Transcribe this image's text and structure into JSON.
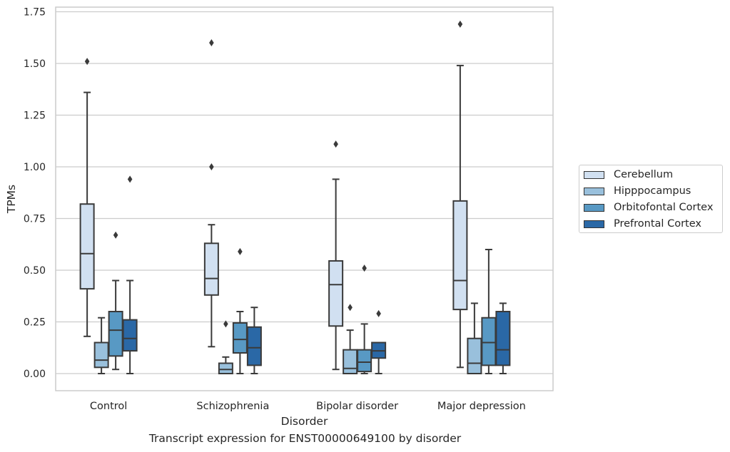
{
  "chart_data": {
    "type": "box",
    "xlabel": "Disorder",
    "ylabel": "TPMs",
    "caption": "Transcript expression for ENST00000649100 by disorder",
    "ylim": [
      -0.08,
      1.77
    ],
    "yticks": [
      0.0,
      0.25,
      0.5,
      0.75,
      1.0,
      1.25,
      1.5,
      1.75
    ],
    "ytick_labels": [
      "0.00",
      "0.25",
      "0.50",
      "0.75",
      "1.00",
      "1.25",
      "1.50",
      "1.75"
    ],
    "grid": "horizontal",
    "legend_position": "right",
    "categories": [
      "Control",
      "Schizophrenia",
      "Bipolar disorder",
      "Major depression"
    ],
    "series": [
      {
        "name": "Cerebellum",
        "color": "#d1e0f1",
        "boxes": [
          {
            "whislo": 0.18,
            "q1": 0.41,
            "med": 0.58,
            "q3": 0.82,
            "whishi": 1.36,
            "fliers": [
              1.51
            ]
          },
          {
            "whislo": 0.13,
            "q1": 0.38,
            "med": 0.46,
            "q3": 0.63,
            "whishi": 0.72,
            "fliers": [
              1.0,
              1.6
            ]
          },
          {
            "whislo": 0.02,
            "q1": 0.23,
            "med": 0.43,
            "q3": 0.545,
            "whishi": 0.94,
            "fliers": [
              1.11
            ]
          },
          {
            "whislo": 0.03,
            "q1": 0.31,
            "med": 0.45,
            "q3": 0.835,
            "whishi": 1.49,
            "fliers": [
              1.69
            ]
          }
        ]
      },
      {
        "name": "Hipppocampus",
        "color": "#99c0dc",
        "boxes": [
          {
            "whislo": 0.0,
            "q1": 0.03,
            "med": 0.065,
            "q3": 0.15,
            "whishi": 0.27,
            "fliers": []
          },
          {
            "whislo": 0.0,
            "q1": 0.0,
            "med": 0.02,
            "q3": 0.05,
            "whishi": 0.08,
            "fliers": [
              0.24
            ]
          },
          {
            "whislo": 0.0,
            "q1": 0.0,
            "med": 0.025,
            "q3": 0.115,
            "whishi": 0.21,
            "fliers": [
              0.32
            ]
          },
          {
            "whislo": 0.0,
            "q1": 0.0,
            "med": 0.05,
            "q3": 0.17,
            "whishi": 0.34,
            "fliers": []
          }
        ]
      },
      {
        "name": "Orbitofontal Cortex",
        "color": "#5899c4",
        "boxes": [
          {
            "whislo": 0.02,
            "q1": 0.085,
            "med": 0.21,
            "q3": 0.3,
            "whishi": 0.45,
            "fliers": [
              0.67
            ]
          },
          {
            "whislo": 0.0,
            "q1": 0.1,
            "med": 0.165,
            "q3": 0.245,
            "whishi": 0.3,
            "fliers": [
              0.59
            ]
          },
          {
            "whislo": 0.0,
            "q1": 0.01,
            "med": 0.055,
            "q3": 0.115,
            "whishi": 0.24,
            "fliers": [
              0.51
            ]
          },
          {
            "whislo": 0.0,
            "q1": 0.04,
            "med": 0.15,
            "q3": 0.27,
            "whishi": 0.6,
            "fliers": []
          }
        ]
      },
      {
        "name": "Prefrontal Cortex",
        "color": "#2a68a6",
        "boxes": [
          {
            "whislo": 0.0,
            "q1": 0.11,
            "med": 0.17,
            "q3": 0.26,
            "whishi": 0.45,
            "fliers": [
              0.94
            ]
          },
          {
            "whislo": 0.0,
            "q1": 0.04,
            "med": 0.125,
            "q3": 0.225,
            "whishi": 0.32,
            "fliers": []
          },
          {
            "whislo": 0.0,
            "q1": 0.075,
            "med": 0.11,
            "q3": 0.15,
            "whishi": 0.15,
            "fliers": [
              0.29
            ]
          },
          {
            "whislo": 0.0,
            "q1": 0.04,
            "med": 0.115,
            "q3": 0.3,
            "whishi": 0.34,
            "fliers": []
          }
        ]
      }
    ]
  }
}
